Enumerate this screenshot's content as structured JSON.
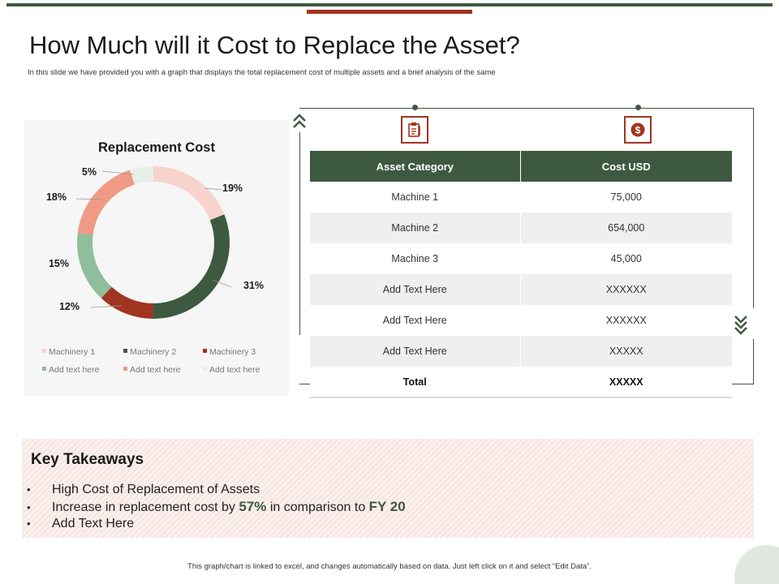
{
  "slide": {
    "title": "How Much will it Cost to Replace the Asset?",
    "subtitle": "In this slide we have provided you with a graph that displays the total replacement cost of multiple assets and a brief analysis of the same",
    "footer": "This graph/chart is linked to excel, and changes automatically based on data. Just left click on it and select “Edit Data”."
  },
  "colors": {
    "dark_green": "#3d5a40",
    "rust": "#a13520",
    "light_pink": "#f7d3cb",
    "salmon": "#ef9a85",
    "sage": "#8fbf9a",
    "pale_green": "#e7efe8"
  },
  "chart_data": {
    "type": "pie",
    "variant": "donut",
    "title": "Replacement Cost",
    "categories": [
      "Machinery 1",
      "Machinery 2",
      "Machinery 3",
      "Add text here",
      "Add text here",
      "Add text here"
    ],
    "values": [
      19,
      31,
      12,
      15,
      18,
      5
    ],
    "labels": [
      "19%",
      "31%",
      "12%",
      "15%",
      "18%",
      "5%"
    ],
    "colors": [
      "#f7d3cb",
      "#3d5a40",
      "#a13520",
      "#8fbf9a",
      "#ef9a85",
      "#e7efe8"
    ],
    "legend_position": "bottom"
  },
  "table": {
    "icons": [
      "clipboard-icon",
      "dollar-icon"
    ],
    "headers": [
      "Asset Category",
      "Cost USD"
    ],
    "rows": [
      [
        "Machine  1",
        "75,000"
      ],
      [
        "Machine 2",
        "654,000"
      ],
      [
        "Machine 3",
        "45,000"
      ],
      [
        "Add Text Here",
        "XXXXXX"
      ],
      [
        "Add Text Here",
        "XXXXXX"
      ],
      [
        "Add Text Here",
        "XXXXX"
      ]
    ],
    "total": [
      "Total",
      "XXXXX"
    ]
  },
  "takeaways": {
    "heading": "Key Takeaways",
    "bullet_char": "•",
    "item1": "High Cost of Replacement of Assets",
    "item2_pre": "Increase in replacement cost by ",
    "item2_pct": "57%",
    "item2_mid": " in comparison to ",
    "item2_fy": "FY 20",
    "item3": "Add Text Here"
  }
}
